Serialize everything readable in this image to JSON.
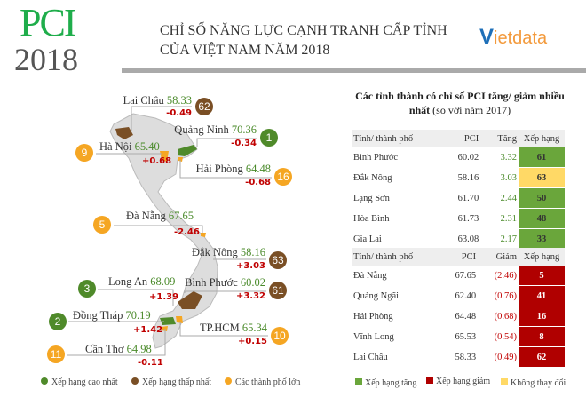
{
  "header": {
    "logo_text": "PCI",
    "logo_year": "2018",
    "title_line1": "CHỈ SỐ NĂNG LỰC CẠNH TRANH CẤP TỈNH",
    "title_line2": "CỦA VIỆT NAM NĂM 2018",
    "brand_v": "V",
    "brand_rest": "ietdata"
  },
  "colors": {
    "top": "#4f8a2a",
    "bottom": "#7a4f25",
    "city": "#f5a623",
    "rank_up": "#6aa63b",
    "rank_down": "#b00000",
    "unchanged": "#ffd966"
  },
  "map": {
    "labels": [
      {
        "name": "Lai Châu",
        "pci": "58.33",
        "delta": "-0.49",
        "rank": "62",
        "type": "bottom"
      },
      {
        "name": "Quảng Ninh",
        "pci": "70.36",
        "delta": "-0.34",
        "rank": "1",
        "type": "top"
      },
      {
        "name": "Hà Nội",
        "pci": "65.40",
        "delta": "+0.68",
        "rank": "9",
        "type": "city"
      },
      {
        "name": "Hải Phòng",
        "pci": "64.48",
        "delta": "-0.68",
        "rank": "16",
        "type": "city"
      },
      {
        "name": "Đà Nẵng",
        "pci": "67.65",
        "delta": "-2.46",
        "rank": "5",
        "type": "city"
      },
      {
        "name": "Đắk Nông",
        "pci": "58.16",
        "delta": "+3.03",
        "rank": "63",
        "type": "bottom"
      },
      {
        "name": "Long An",
        "pci": "68.09",
        "delta": "+1.39",
        "rank": "3",
        "type": "top"
      },
      {
        "name": "Bình Phước",
        "pci": "60.02",
        "delta": "+3.32",
        "rank": "61",
        "type": "bottom"
      },
      {
        "name": "Đồng Tháp",
        "pci": "70.19",
        "delta": "+1.42",
        "rank": "2",
        "type": "top"
      },
      {
        "name": "TP.HCM",
        "pci": "65.34",
        "delta": "+0.15",
        "rank": "10",
        "type": "city"
      },
      {
        "name": "Cần Thơ",
        "pci": "64.98",
        "delta": "-0.11",
        "rank": "11",
        "type": "city"
      }
    ],
    "legend": [
      "Xếp hạng cao nhất",
      "Xếp hạng thấp nhất",
      "Các thành phố lớn"
    ]
  },
  "table": {
    "title_bold": "Các tỉnh thành có chỉ số PCI tăng/ giảm nhiều nhất",
    "title_normal": "(so với năm 2017)",
    "increase": {
      "headers": [
        "Tỉnh/ thành phố",
        "PCI",
        "Tăng",
        "Xếp hạng"
      ],
      "rows": [
        {
          "name": "Bình Phước",
          "pci": "60.02",
          "change": "3.32",
          "rank": "61",
          "status": "up"
        },
        {
          "name": "Đắk Nông",
          "pci": "58.16",
          "change": "3.03",
          "rank": "63",
          "status": "same"
        },
        {
          "name": "Lạng Sơn",
          "pci": "61.70",
          "change": "2.44",
          "rank": "50",
          "status": "up"
        },
        {
          "name": "Hòa Bình",
          "pci": "61.73",
          "change": "2.31",
          "rank": "48",
          "status": "up"
        },
        {
          "name": "Gia Lai",
          "pci": "63.08",
          "change": "2.17",
          "rank": "33",
          "status": "up"
        }
      ]
    },
    "decrease": {
      "headers": [
        "Tỉnh/ thành phố",
        "PCI",
        "Giảm",
        "Xếp hạng"
      ],
      "rows": [
        {
          "name": "Đà Nẵng",
          "pci": "67.65",
          "change": "(2.46)",
          "rank": "5",
          "status": "down"
        },
        {
          "name": "Quảng Ngãi",
          "pci": "62.40",
          "change": "(0.76)",
          "rank": "41",
          "status": "down"
        },
        {
          "name": "Hải Phòng",
          "pci": "64.48",
          "change": "(0.68)",
          "rank": "16",
          "status": "down"
        },
        {
          "name": "Vĩnh Long",
          "pci": "65.53",
          "change": "(0.54)",
          "rank": "8",
          "status": "down"
        },
        {
          "name": "Lai Châu",
          "pci": "58.33",
          "change": "(0.49)",
          "rank": "62",
          "status": "down"
        }
      ]
    },
    "legend": [
      "Xếp hạng tăng",
      "Xếp hạng giảm",
      "Không thay đổi"
    ]
  }
}
